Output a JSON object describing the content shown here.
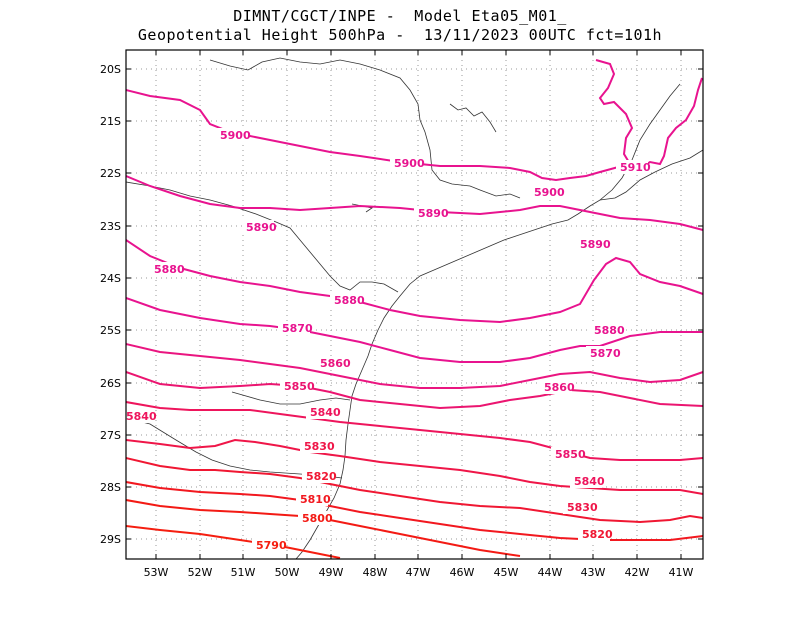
{
  "title": {
    "line1": "DIMNT/CGCT/INPE -  Model Eta05_M01_",
    "line2": "Geopotential Height 500hPa -  13/11/2023 00UTC fct=101h"
  },
  "axes": {
    "lat_labels": [
      "20S",
      "21S",
      "22S",
      "23S",
      "24S",
      "25S",
      "26S",
      "27S",
      "28S",
      "29S"
    ],
    "lon_labels": [
      "53W",
      "52W",
      "51W",
      "50W",
      "49W",
      "48W",
      "47W",
      "46W",
      "45W",
      "44W",
      "43W",
      "42W",
      "41W"
    ],
    "lat_range": [
      -29.4,
      -19.6
    ],
    "lon_range": [
      -53.7,
      -40.5
    ]
  },
  "contours": [
    {
      "value": "5910",
      "color": "#e8138f"
    },
    {
      "value": "5900",
      "color": "#e8138f"
    },
    {
      "value": "5890",
      "color": "#e8138f"
    },
    {
      "value": "5880",
      "color": "#e8138f"
    },
    {
      "value": "5870",
      "color": "#e8138f"
    },
    {
      "value": "5860",
      "color": "#ea1580"
    },
    {
      "value": "5850",
      "color": "#eb1570"
    },
    {
      "value": "5840",
      "color": "#ee155c"
    },
    {
      "value": "5830",
      "color": "#ef1648"
    },
    {
      "value": "5820",
      "color": "#f01732"
    },
    {
      "value": "5810",
      "color": "#f2181f"
    },
    {
      "value": "5800",
      "color": "#f31a14"
    },
    {
      "value": "5790",
      "color": "#f51e10"
    }
  ]
}
